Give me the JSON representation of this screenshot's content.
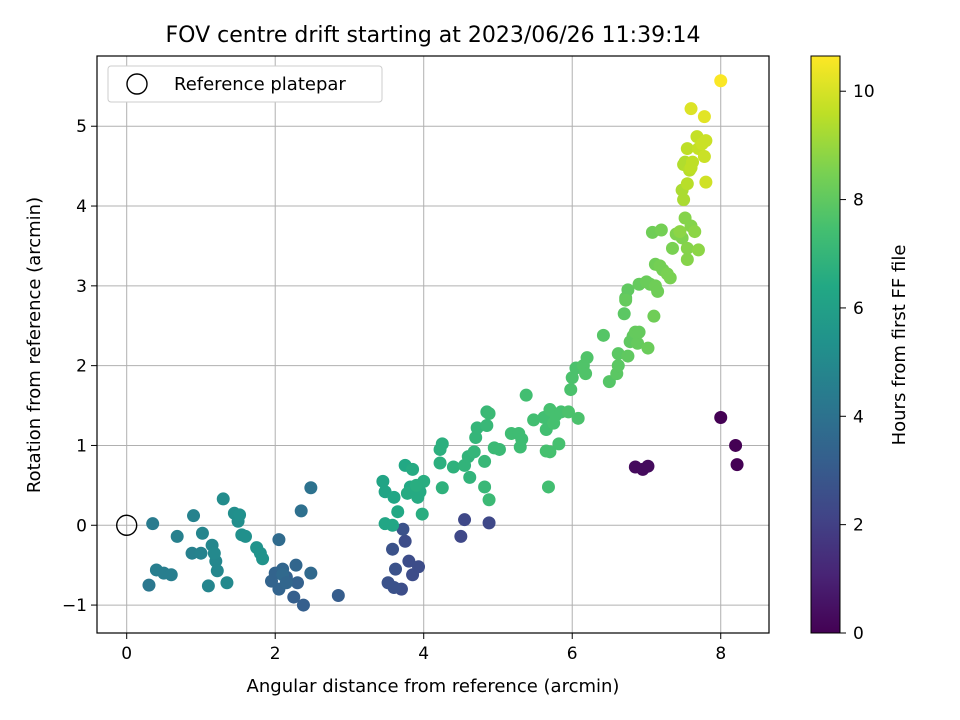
{
  "chart_data": {
    "type": "scatter",
    "title": "FOV centre drift starting at 2023/06/26 11:39:14",
    "xlabel": "Angular distance from reference (arcmin)",
    "ylabel": "Rotation from reference (arcmin)",
    "xlim": [
      -0.4,
      8.65
    ],
    "ylim": [
      -1.35,
      5.88
    ],
    "xticks": [
      0,
      2,
      4,
      6,
      8
    ],
    "yticks": [
      -1,
      0,
      1,
      2,
      3,
      4,
      5
    ],
    "grid": true,
    "legend": {
      "placement": "top-left",
      "entries": [
        "Reference platepar"
      ]
    },
    "reference_point": {
      "x": 0,
      "y": 0
    },
    "colorbar": {
      "label": "Hours from first FF file",
      "range": [
        0,
        10.65
      ],
      "ticks": [
        0,
        2,
        4,
        6,
        8,
        10
      ],
      "colormap": "viridis"
    },
    "points": [
      {
        "x": 8.0,
        "y": 1.35,
        "c": 0.0
      },
      {
        "x": 8.2,
        "y": 1.0,
        "c": 0.0
      },
      {
        "x": 8.22,
        "y": 0.76,
        "c": 0.0
      },
      {
        "x": 6.85,
        "y": 0.73,
        "c": 0.3
      },
      {
        "x": 6.95,
        "y": 0.7,
        "c": 0.3
      },
      {
        "x": 7.02,
        "y": 0.74,
        "c": 0.3
      },
      {
        "x": 4.5,
        "y": -0.14,
        "c": 2.3
      },
      {
        "x": 4.55,
        "y": 0.07,
        "c": 2.3
      },
      {
        "x": 4.88,
        "y": 0.03,
        "c": 2.3
      },
      {
        "x": 3.7,
        "y": -0.8,
        "c": 2.5
      },
      {
        "x": 3.8,
        "y": -0.45,
        "c": 2.5
      },
      {
        "x": 3.85,
        "y": -0.62,
        "c": 2.5
      },
      {
        "x": 3.93,
        "y": -0.52,
        "c": 2.5
      },
      {
        "x": 3.75,
        "y": -0.2,
        "c": 2.5
      },
      {
        "x": 3.58,
        "y": -0.3,
        "c": 2.7
      },
      {
        "x": 3.62,
        "y": -0.55,
        "c": 2.7
      },
      {
        "x": 3.6,
        "y": -0.78,
        "c": 2.7
      },
      {
        "x": 3.52,
        "y": -0.72,
        "c": 2.7
      },
      {
        "x": 3.72,
        "y": -0.05,
        "c": 2.7
      },
      {
        "x": 2.85,
        "y": -0.88,
        "c": 3.1
      },
      {
        "x": 2.38,
        "y": -1.0,
        "c": 3.2
      },
      {
        "x": 2.25,
        "y": -0.9,
        "c": 3.2
      },
      {
        "x": 2.3,
        "y": -0.72,
        "c": 3.3
      },
      {
        "x": 2.15,
        "y": -0.65,
        "c": 3.3
      },
      {
        "x": 2.05,
        "y": -0.8,
        "c": 3.4
      },
      {
        "x": 2.0,
        "y": -0.6,
        "c": 3.4
      },
      {
        "x": 1.95,
        "y": -0.7,
        "c": 3.4
      },
      {
        "x": 2.1,
        "y": -0.55,
        "c": 3.5
      },
      {
        "x": 2.28,
        "y": -0.5,
        "c": 3.5
      },
      {
        "x": 2.48,
        "y": -0.6,
        "c": 3.6
      },
      {
        "x": 2.05,
        "y": -0.18,
        "c": 3.7
      },
      {
        "x": 2.35,
        "y": 0.18,
        "c": 3.9
      },
      {
        "x": 2.48,
        "y": 0.47,
        "c": 4.0
      },
      {
        "x": 2.1,
        "y": -0.62,
        "c": 3.6
      },
      {
        "x": 2.15,
        "y": -0.72,
        "c": 3.5
      },
      {
        "x": 0.3,
        "y": -0.75,
        "c": 4.2
      },
      {
        "x": 0.35,
        "y": 0.02,
        "c": 4.4
      },
      {
        "x": 0.4,
        "y": -0.56,
        "c": 4.5
      },
      {
        "x": 0.5,
        "y": -0.6,
        "c": 4.5
      },
      {
        "x": 0.6,
        "y": -0.62,
        "c": 4.5
      },
      {
        "x": 0.68,
        "y": -0.14,
        "c": 4.6
      },
      {
        "x": 0.88,
        "y": -0.35,
        "c": 4.6
      },
      {
        "x": 0.9,
        "y": 0.12,
        "c": 4.7
      },
      {
        "x": 1.0,
        "y": -0.35,
        "c": 4.7
      },
      {
        "x": 1.02,
        "y": -0.1,
        "c": 4.8
      },
      {
        "x": 1.1,
        "y": -0.76,
        "c": 4.8
      },
      {
        "x": 1.15,
        "y": -0.25,
        "c": 4.9
      },
      {
        "x": 1.2,
        "y": -0.45,
        "c": 4.9
      },
      {
        "x": 1.22,
        "y": -0.57,
        "c": 4.9
      },
      {
        "x": 1.35,
        "y": -0.72,
        "c": 5.0
      },
      {
        "x": 1.3,
        "y": 0.33,
        "c": 5.1
      },
      {
        "x": 1.45,
        "y": 0.15,
        "c": 5.2
      },
      {
        "x": 1.5,
        "y": 0.05,
        "c": 5.2
      },
      {
        "x": 1.52,
        "y": 0.13,
        "c": 5.3
      },
      {
        "x": 1.55,
        "y": -0.12,
        "c": 5.3
      },
      {
        "x": 1.6,
        "y": -0.14,
        "c": 5.3
      },
      {
        "x": 1.75,
        "y": -0.28,
        "c": 5.4
      },
      {
        "x": 1.8,
        "y": -0.35,
        "c": 5.4
      },
      {
        "x": 1.83,
        "y": -0.42,
        "c": 5.4
      },
      {
        "x": 1.18,
        "y": -0.35,
        "c": 5.0
      },
      {
        "x": 3.45,
        "y": 0.55,
        "c": 6.2
      },
      {
        "x": 3.48,
        "y": 0.42,
        "c": 6.2
      },
      {
        "x": 3.48,
        "y": 0.02,
        "c": 6.3
      },
      {
        "x": 3.58,
        "y": 0.0,
        "c": 6.3
      },
      {
        "x": 3.6,
        "y": 0.35,
        "c": 6.3
      },
      {
        "x": 3.65,
        "y": 0.17,
        "c": 6.4
      },
      {
        "x": 3.75,
        "y": 0.75,
        "c": 6.4
      },
      {
        "x": 3.82,
        "y": 0.48,
        "c": 6.4
      },
      {
        "x": 3.85,
        "y": 0.7,
        "c": 6.5
      },
      {
        "x": 3.78,
        "y": 0.4,
        "c": 6.5
      },
      {
        "x": 3.92,
        "y": 0.35,
        "c": 6.5
      },
      {
        "x": 3.95,
        "y": 0.42,
        "c": 6.5
      },
      {
        "x": 3.98,
        "y": 0.14,
        "c": 6.6
      },
      {
        "x": 4.0,
        "y": 0.55,
        "c": 6.6
      },
      {
        "x": 3.9,
        "y": 0.5,
        "c": 6.6
      },
      {
        "x": 4.22,
        "y": 0.78,
        "c": 6.7
      },
      {
        "x": 4.22,
        "y": 0.95,
        "c": 6.7
      },
      {
        "x": 4.25,
        "y": 1.02,
        "c": 6.7
      },
      {
        "x": 4.25,
        "y": 0.47,
        "c": 6.8
      },
      {
        "x": 4.4,
        "y": 0.73,
        "c": 6.8
      },
      {
        "x": 4.55,
        "y": 0.75,
        "c": 6.9
      },
      {
        "x": 4.6,
        "y": 0.86,
        "c": 6.9
      },
      {
        "x": 4.62,
        "y": 0.6,
        "c": 6.9
      },
      {
        "x": 4.68,
        "y": 0.92,
        "c": 7.0
      },
      {
        "x": 4.7,
        "y": 1.1,
        "c": 7.0
      },
      {
        "x": 4.72,
        "y": 1.22,
        "c": 7.0
      },
      {
        "x": 4.82,
        "y": 0.8,
        "c": 7.1
      },
      {
        "x": 4.82,
        "y": 0.48,
        "c": 7.1
      },
      {
        "x": 4.85,
        "y": 1.25,
        "c": 7.1
      },
      {
        "x": 4.85,
        "y": 1.42,
        "c": 7.1
      },
      {
        "x": 4.88,
        "y": 1.4,
        "c": 7.2
      },
      {
        "x": 4.88,
        "y": 0.32,
        "c": 7.2
      },
      {
        "x": 4.95,
        "y": 0.97,
        "c": 7.2
      },
      {
        "x": 5.02,
        "y": 0.95,
        "c": 7.2
      },
      {
        "x": 5.18,
        "y": 1.15,
        "c": 7.3
      },
      {
        "x": 5.28,
        "y": 1.15,
        "c": 7.3
      },
      {
        "x": 5.3,
        "y": 0.98,
        "c": 7.3
      },
      {
        "x": 5.32,
        "y": 1.08,
        "c": 7.3
      },
      {
        "x": 5.38,
        "y": 1.63,
        "c": 7.4
      },
      {
        "x": 5.48,
        "y": 1.32,
        "c": 7.4
      },
      {
        "x": 5.62,
        "y": 1.35,
        "c": 7.4
      },
      {
        "x": 5.65,
        "y": 1.2,
        "c": 7.4
      },
      {
        "x": 5.68,
        "y": 0.48,
        "c": 7.4
      },
      {
        "x": 5.7,
        "y": 1.45,
        "c": 7.5
      },
      {
        "x": 5.75,
        "y": 1.28,
        "c": 7.5
      },
      {
        "x": 5.78,
        "y": 1.38,
        "c": 7.5
      },
      {
        "x": 5.82,
        "y": 1.02,
        "c": 7.5
      },
      {
        "x": 5.85,
        "y": 1.42,
        "c": 7.5
      },
      {
        "x": 5.65,
        "y": 0.93,
        "c": 7.5
      },
      {
        "x": 5.7,
        "y": 0.92,
        "c": 7.5
      },
      {
        "x": 5.95,
        "y": 1.42,
        "c": 7.6
      },
      {
        "x": 5.98,
        "y": 1.7,
        "c": 7.6
      },
      {
        "x": 6.0,
        "y": 1.85,
        "c": 7.6
      },
      {
        "x": 6.05,
        "y": 1.97,
        "c": 7.6
      },
      {
        "x": 6.08,
        "y": 1.34,
        "c": 7.6
      },
      {
        "x": 6.15,
        "y": 2.0,
        "c": 7.7
      },
      {
        "x": 6.18,
        "y": 1.9,
        "c": 7.7
      },
      {
        "x": 6.2,
        "y": 2.1,
        "c": 7.7
      },
      {
        "x": 6.42,
        "y": 2.38,
        "c": 7.8
      },
      {
        "x": 6.5,
        "y": 1.8,
        "c": 7.8
      },
      {
        "x": 6.6,
        "y": 1.9,
        "c": 7.9
      },
      {
        "x": 6.62,
        "y": 2.0,
        "c": 7.9
      },
      {
        "x": 6.62,
        "y": 2.15,
        "c": 7.9
      },
      {
        "x": 6.7,
        "y": 2.65,
        "c": 7.9
      },
      {
        "x": 6.72,
        "y": 2.85,
        "c": 8.0
      },
      {
        "x": 6.75,
        "y": 2.95,
        "c": 8.0
      },
      {
        "x": 6.75,
        "y": 2.12,
        "c": 8.0
      },
      {
        "x": 6.78,
        "y": 2.3,
        "c": 8.0
      },
      {
        "x": 6.82,
        "y": 2.37,
        "c": 8.0
      },
      {
        "x": 6.85,
        "y": 2.42,
        "c": 8.1
      },
      {
        "x": 6.88,
        "y": 2.28,
        "c": 8.1
      },
      {
        "x": 6.9,
        "y": 2.42,
        "c": 8.1
      },
      {
        "x": 6.9,
        "y": 3.02,
        "c": 8.1
      },
      {
        "x": 6.72,
        "y": 2.82,
        "c": 8.1
      },
      {
        "x": 7.02,
        "y": 2.22,
        "c": 8.2
      },
      {
        "x": 7.0,
        "y": 3.05,
        "c": 8.2
      },
      {
        "x": 7.05,
        "y": 3.02,
        "c": 8.2
      },
      {
        "x": 7.08,
        "y": 3.67,
        "c": 8.3
      },
      {
        "x": 7.1,
        "y": 2.62,
        "c": 8.3
      },
      {
        "x": 7.12,
        "y": 3.27,
        "c": 8.3
      },
      {
        "x": 7.12,
        "y": 3.0,
        "c": 8.3
      },
      {
        "x": 7.15,
        "y": 2.93,
        "c": 8.3
      },
      {
        "x": 7.18,
        "y": 3.25,
        "c": 8.4
      },
      {
        "x": 7.2,
        "y": 3.7,
        "c": 8.4
      },
      {
        "x": 7.22,
        "y": 3.2,
        "c": 8.4
      },
      {
        "x": 7.28,
        "y": 3.15,
        "c": 8.5
      },
      {
        "x": 7.32,
        "y": 3.1,
        "c": 8.5
      },
      {
        "x": 7.35,
        "y": 3.47,
        "c": 8.5
      },
      {
        "x": 7.4,
        "y": 3.65,
        "c": 8.6
      },
      {
        "x": 7.48,
        "y": 3.6,
        "c": 8.6
      },
      {
        "x": 7.52,
        "y": 3.85,
        "c": 8.7
      },
      {
        "x": 7.55,
        "y": 3.47,
        "c": 8.7
      },
      {
        "x": 7.55,
        "y": 3.33,
        "c": 8.7
      },
      {
        "x": 7.6,
        "y": 3.75,
        "c": 8.7
      },
      {
        "x": 7.65,
        "y": 3.68,
        "c": 8.8
      },
      {
        "x": 7.7,
        "y": 3.45,
        "c": 8.8
      },
      {
        "x": 7.45,
        "y": 3.68,
        "c": 8.8
      },
      {
        "x": 7.48,
        "y": 4.2,
        "c": 9.3
      },
      {
        "x": 7.5,
        "y": 4.08,
        "c": 9.3
      },
      {
        "x": 7.52,
        "y": 4.55,
        "c": 9.4
      },
      {
        "x": 7.5,
        "y": 4.52,
        "c": 9.4
      },
      {
        "x": 7.55,
        "y": 4.28,
        "c": 9.5
      },
      {
        "x": 7.58,
        "y": 4.45,
        "c": 9.5
      },
      {
        "x": 7.6,
        "y": 4.48,
        "c": 9.6
      },
      {
        "x": 7.55,
        "y": 4.72,
        "c": 9.6
      },
      {
        "x": 7.62,
        "y": 4.55,
        "c": 9.6
      },
      {
        "x": 7.68,
        "y": 4.87,
        "c": 9.7
      },
      {
        "x": 7.7,
        "y": 4.72,
        "c": 9.7
      },
      {
        "x": 7.75,
        "y": 4.78,
        "c": 9.8
      },
      {
        "x": 7.78,
        "y": 4.62,
        "c": 9.8
      },
      {
        "x": 7.8,
        "y": 4.82,
        "c": 9.8
      },
      {
        "x": 7.8,
        "y": 4.3,
        "c": 9.9
      },
      {
        "x": 7.6,
        "y": 5.22,
        "c": 10.1
      },
      {
        "x": 7.78,
        "y": 5.12,
        "c": 10.2
      },
      {
        "x": 8.0,
        "y": 5.57,
        "c": 10.6
      }
    ]
  }
}
